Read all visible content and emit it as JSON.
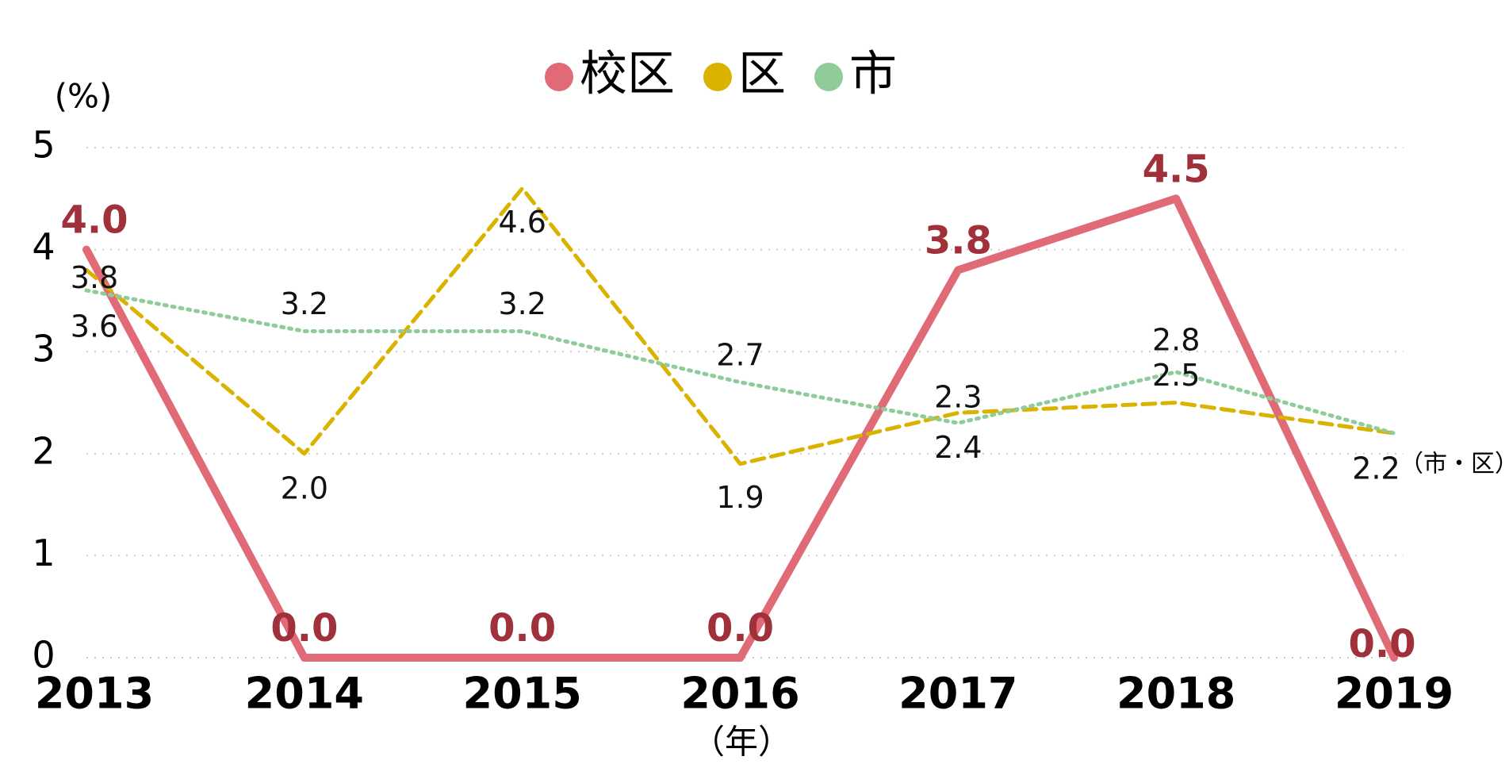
{
  "chart_data": {
    "type": "line",
    "categories": [
      "2013",
      "2014",
      "2015",
      "2016",
      "2017",
      "2018",
      "2019"
    ],
    "series": [
      {
        "name": "校区",
        "color": "#e06a75",
        "values": [
          4.0,
          0.0,
          0.0,
          0.0,
          3.8,
          4.5,
          0.0
        ],
        "value_labels": [
          "4.0",
          "0.0",
          "0.0",
          "0.0",
          "3.8",
          "4.5",
          "0.0"
        ]
      },
      {
        "name": "区",
        "color": "#d9b300",
        "values": [
          3.8,
          2.0,
          4.6,
          1.9,
          2.4,
          2.5,
          2.2
        ],
        "value_labels": [
          "3.8",
          "2.0",
          "4.6",
          "1.9",
          "2.4",
          "2.5",
          "2.2"
        ]
      },
      {
        "name": "市",
        "color": "#8fcc9a",
        "values": [
          3.6,
          3.2,
          3.2,
          2.7,
          2.3,
          2.8,
          2.2
        ],
        "value_labels": [
          "3.6",
          "3.2",
          "3.2",
          "2.7",
          "2.3",
          "2.8",
          "2.2"
        ]
      }
    ],
    "ylim": [
      0,
      5
    ],
    "yticks": [
      0,
      1,
      2,
      3,
      4,
      5
    ],
    "grid": true,
    "y_label": "(%)",
    "x_label": "（年）",
    "annotation": "（市・区）"
  }
}
